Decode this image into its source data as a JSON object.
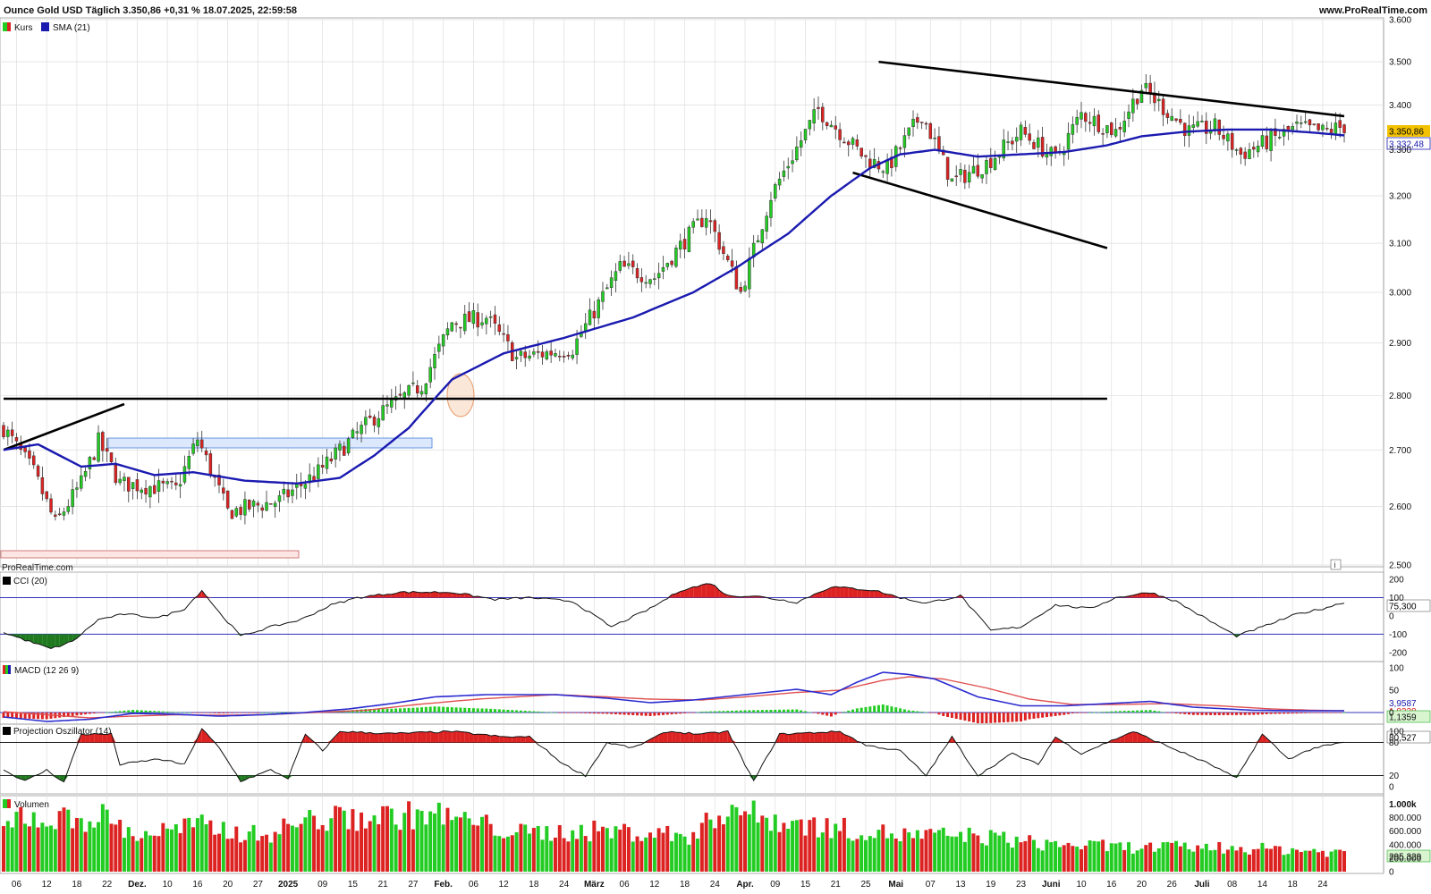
{
  "header": {
    "title": "Ounce Gold USD Täglich 3.350,86 +0,31 % 18.07.2025, 22:59:58",
    "brand": "www.ProRealTime.com",
    "watermark": "ProRealTime.com"
  },
  "colors": {
    "up": "#22cc22",
    "down": "#dd2222",
    "sma": "#1a1ab0",
    "grid": "#dedede",
    "trendline": "#000000",
    "box_blue": "#4a7fe0",
    "box_red": "#c86060"
  },
  "chart_data": [
    {
      "panel": "price",
      "type": "candlestick",
      "legend": [
        "Kurs",
        "SMA (21)"
      ],
      "y_ticks": [
        "3.600",
        "3.500",
        "3.400",
        "3.300",
        "3.200",
        "3.100",
        "3.000",
        "2.900",
        "2.800",
        "2.700",
        "2.600",
        "2.500"
      ],
      "ylim": [
        2500,
        3600
      ],
      "last_price_label": "3.350,86",
      "sma_label": "3.332,48",
      "sma_last": 3332.48,
      "x_ticks": [
        "06",
        "12",
        "18",
        "22",
        "Dez.",
        "10",
        "16",
        "20",
        "27",
        "2025",
        "09",
        "15",
        "21",
        "27",
        "Feb.",
        "06",
        "12",
        "18",
        "24",
        "März",
        "06",
        "12",
        "18",
        "24",
        "Apr.",
        "09",
        "15",
        "21",
        "25",
        "Mai",
        "07",
        "13",
        "19",
        "23",
        "Juni",
        "10",
        "16",
        "20",
        "26",
        "Juli",
        "08",
        "14",
        "18",
        "24"
      ],
      "anchors": [
        [
          0,
          2740
        ],
        [
          7,
          2660
        ],
        [
          12,
          2570
        ],
        [
          18,
          2640
        ],
        [
          22,
          2715
        ],
        [
          27,
          2640
        ],
        [
          40,
          2630
        ],
        [
          45,
          2720
        ],
        [
          52,
          2590
        ],
        [
          64,
          2610
        ],
        [
          73,
          2660
        ],
        [
          86,
          2760
        ],
        [
          97,
          2820
        ],
        [
          104,
          2940
        ],
        [
          112,
          2950
        ],
        [
          119,
          2870
        ],
        [
          132,
          2890
        ],
        [
          143,
          3050
        ],
        [
          151,
          3030
        ],
        [
          163,
          3160
        ],
        [
          168,
          3060
        ],
        [
          171,
          3000
        ],
        [
          178,
          3200
        ],
        [
          189,
          3390
        ],
        [
          200,
          3280
        ],
        [
          205,
          3260
        ],
        [
          213,
          3380
        ],
        [
          220,
          3230
        ],
        [
          228,
          3270
        ],
        [
          236,
          3340
        ],
        [
          244,
          3280
        ],
        [
          250,
          3380
        ],
        [
          258,
          3340
        ],
        [
          264,
          3440
        ],
        [
          275,
          3340
        ],
        [
          281,
          3350
        ],
        [
          287,
          3290
        ],
        [
          300,
          3350
        ],
        [
          306,
          3340
        ],
        [
          311,
          3352
        ]
      ],
      "sma_curve": [
        [
          0,
          2700
        ],
        [
          8,
          2710
        ],
        [
          18,
          2670
        ],
        [
          26,
          2675
        ],
        [
          35,
          2655
        ],
        [
          44,
          2660
        ],
        [
          56,
          2645
        ],
        [
          68,
          2640
        ],
        [
          78,
          2650
        ],
        [
          86,
          2690
        ],
        [
          94,
          2740
        ],
        [
          104,
          2830
        ],
        [
          116,
          2880
        ],
        [
          130,
          2910
        ],
        [
          146,
          2950
        ],
        [
          160,
          3000
        ],
        [
          170,
          3050
        ],
        [
          182,
          3120
        ],
        [
          192,
          3200
        ],
        [
          201,
          3260
        ],
        [
          208,
          3290
        ],
        [
          216,
          3300
        ],
        [
          226,
          3285
        ],
        [
          236,
          3290
        ],
        [
          246,
          3295
        ],
        [
          256,
          3310
        ],
        [
          264,
          3330
        ],
        [
          274,
          3340
        ],
        [
          284,
          3345
        ],
        [
          294,
          3345
        ],
        [
          304,
          3338
        ],
        [
          311,
          3332
        ]
      ],
      "trendlines": [
        [
          [
            0,
            2700
          ],
          [
            28,
            2784
          ]
        ],
        [
          [
            0,
            2794
          ],
          [
            256,
            2794
          ]
        ],
        [
          [
            203,
            3500
          ],
          [
            311,
            3375
          ]
        ],
        [
          [
            197,
            3250
          ],
          [
            256,
            3090
          ]
        ]
      ]
    },
    {
      "panel": "cci",
      "type": "line",
      "legend": [
        "CCI (20)"
      ],
      "y_ticks": [
        "200",
        "100",
        "0",
        "-100",
        "-200"
      ],
      "ylim": [
        -240,
        230
      ],
      "current_label": "75,300",
      "overbought": 100,
      "oversold": -100,
      "points": [
        [
          0,
          -90
        ],
        [
          6,
          -140
        ],
        [
          11,
          -180
        ],
        [
          16,
          -140
        ],
        [
          22,
          -20
        ],
        [
          28,
          10
        ],
        [
          36,
          -10
        ],
        [
          42,
          40
        ],
        [
          46,
          140
        ],
        [
          50,
          20
        ],
        [
          55,
          -110
        ],
        [
          62,
          -60
        ],
        [
          69,
          -20
        ],
        [
          76,
          60
        ],
        [
          82,
          100
        ],
        [
          92,
          130
        ],
        [
          104,
          130
        ],
        [
          114,
          90
        ],
        [
          122,
          100
        ],
        [
          132,
          80
        ],
        [
          141,
          -60
        ],
        [
          150,
          40
        ],
        [
          157,
          140
        ],
        [
          164,
          180
        ],
        [
          168,
          110
        ],
        [
          174,
          110
        ],
        [
          184,
          75
        ],
        [
          192,
          160
        ],
        [
          202,
          140
        ],
        [
          208,
          100
        ],
        [
          214,
          70
        ],
        [
          222,
          110
        ],
        [
          229,
          -80
        ],
        [
          236,
          -60
        ],
        [
          244,
          60
        ],
        [
          252,
          40
        ],
        [
          258,
          100
        ],
        [
          266,
          130
        ],
        [
          272,
          80
        ],
        [
          280,
          -30
        ],
        [
          286,
          -110
        ],
        [
          292,
          -60
        ],
        [
          300,
          10
        ],
        [
          306,
          40
        ],
        [
          311,
          75
        ]
      ]
    },
    {
      "panel": "macd",
      "type": "line+histogram",
      "legend": [
        "MACD (12 26 9)"
      ],
      "y_ticks": [
        "100",
        "50",
        "0"
      ],
      "ylim": [
        -22,
        110
      ],
      "value_labels": [
        "3,9587",
        "1,8228",
        "1,1359"
      ],
      "macd": [
        [
          0,
          -10
        ],
        [
          10,
          -20
        ],
        [
          20,
          -15
        ],
        [
          30,
          -2
        ],
        [
          40,
          -4
        ],
        [
          50,
          -8
        ],
        [
          60,
          -5
        ],
        [
          70,
          0
        ],
        [
          80,
          8
        ],
        [
          90,
          20
        ],
        [
          100,
          35
        ],
        [
          112,
          40
        ],
        [
          128,
          40
        ],
        [
          140,
          32
        ],
        [
          150,
          22
        ],
        [
          160,
          28
        ],
        [
          172,
          40
        ],
        [
          184,
          52
        ],
        [
          192,
          40
        ],
        [
          198,
          68
        ],
        [
          204,
          90
        ],
        [
          210,
          85
        ],
        [
          216,
          75
        ],
        [
          226,
          35
        ],
        [
          236,
          15
        ],
        [
          246,
          15
        ],
        [
          256,
          20
        ],
        [
          266,
          25
        ],
        [
          276,
          12
        ],
        [
          290,
          5
        ],
        [
          300,
          4
        ],
        [
          311,
          4
        ]
      ],
      "signal": [
        [
          0,
          2
        ],
        [
          10,
          -5
        ],
        [
          20,
          -12
        ],
        [
          30,
          -8
        ],
        [
          40,
          -5
        ],
        [
          50,
          -6
        ],
        [
          60,
          -5
        ],
        [
          72,
          0
        ],
        [
          84,
          5
        ],
        [
          96,
          18
        ],
        [
          110,
          30
        ],
        [
          128,
          40
        ],
        [
          140,
          35
        ],
        [
          150,
          30
        ],
        [
          162,
          28
        ],
        [
          172,
          35
        ],
        [
          184,
          45
        ],
        [
          194,
          50
        ],
        [
          204,
          72
        ],
        [
          210,
          80
        ],
        [
          218,
          75
        ],
        [
          228,
          55
        ],
        [
          238,
          30
        ],
        [
          248,
          18
        ],
        [
          258,
          18
        ],
        [
          270,
          20
        ],
        [
          282,
          15
        ],
        [
          294,
          8
        ],
        [
          304,
          5
        ],
        [
          311,
          4
        ]
      ]
    },
    {
      "panel": "projection",
      "type": "line",
      "legend": [
        "Projection Oszillator (14)"
      ],
      "y_ticks": [
        "100",
        "80",
        "20",
        "0"
      ],
      "ylim": [
        -10,
        110
      ],
      "current_label": "80,527",
      "upper": 80,
      "lower": 20,
      "points": [
        [
          0,
          30
        ],
        [
          5,
          10
        ],
        [
          10,
          30
        ],
        [
          14,
          8
        ],
        [
          18,
          95
        ],
        [
          25,
          95
        ],
        [
          27,
          40
        ],
        [
          36,
          50
        ],
        [
          42,
          40
        ],
        [
          46,
          105
        ],
        [
          50,
          70
        ],
        [
          55,
          10
        ],
        [
          62,
          30
        ],
        [
          66,
          15
        ],
        [
          70,
          95
        ],
        [
          74,
          65
        ],
        [
          78,
          100
        ],
        [
          90,
          96
        ],
        [
          104,
          100
        ],
        [
          116,
          90
        ],
        [
          122,
          90
        ],
        [
          130,
          40
        ],
        [
          135,
          20
        ],
        [
          140,
          80
        ],
        [
          146,
          70
        ],
        [
          154,
          100
        ],
        [
          162,
          95
        ],
        [
          168,
          100
        ],
        [
          174,
          10
        ],
        [
          180,
          95
        ],
        [
          194,
          100
        ],
        [
          200,
          75
        ],
        [
          208,
          65
        ],
        [
          214,
          20
        ],
        [
          220,
          90
        ],
        [
          226,
          20
        ],
        [
          234,
          60
        ],
        [
          240,
          40
        ],
        [
          244,
          90
        ],
        [
          250,
          60
        ],
        [
          256,
          80
        ],
        [
          262,
          100
        ],
        [
          268,
          80
        ],
        [
          280,
          40
        ],
        [
          286,
          15
        ],
        [
          292,
          95
        ],
        [
          298,
          50
        ],
        [
          304,
          70
        ],
        [
          311,
          80
        ]
      ]
    },
    {
      "panel": "volume",
      "type": "bar",
      "legend": [
        "Volumen"
      ],
      "y_ticks": [
        "1.000k",
        "800.000",
        "600.000",
        "400.000",
        "200.000",
        "0"
      ],
      "ylim": [
        0,
        1100000
      ],
      "current_label": "295.329",
      "anchors": [
        [
          0,
          650000
        ],
        [
          4,
          900000
        ],
        [
          10,
          800000
        ],
        [
          24,
          860000
        ],
        [
          30,
          560000
        ],
        [
          45,
          720000
        ],
        [
          60,
          560000
        ],
        [
          66,
          700000
        ],
        [
          70,
          800000
        ],
        [
          94,
          880000
        ],
        [
          100,
          900000
        ],
        [
          120,
          600000
        ],
        [
          140,
          640000
        ],
        [
          160,
          560000
        ],
        [
          168,
          1030000
        ],
        [
          176,
          840000
        ],
        [
          190,
          700000
        ],
        [
          210,
          560000
        ],
        [
          226,
          560000
        ],
        [
          240,
          440000
        ],
        [
          260,
          380000
        ],
        [
          280,
          380000
        ],
        [
          300,
          340000
        ],
        [
          311,
          295329
        ]
      ]
    }
  ]
}
